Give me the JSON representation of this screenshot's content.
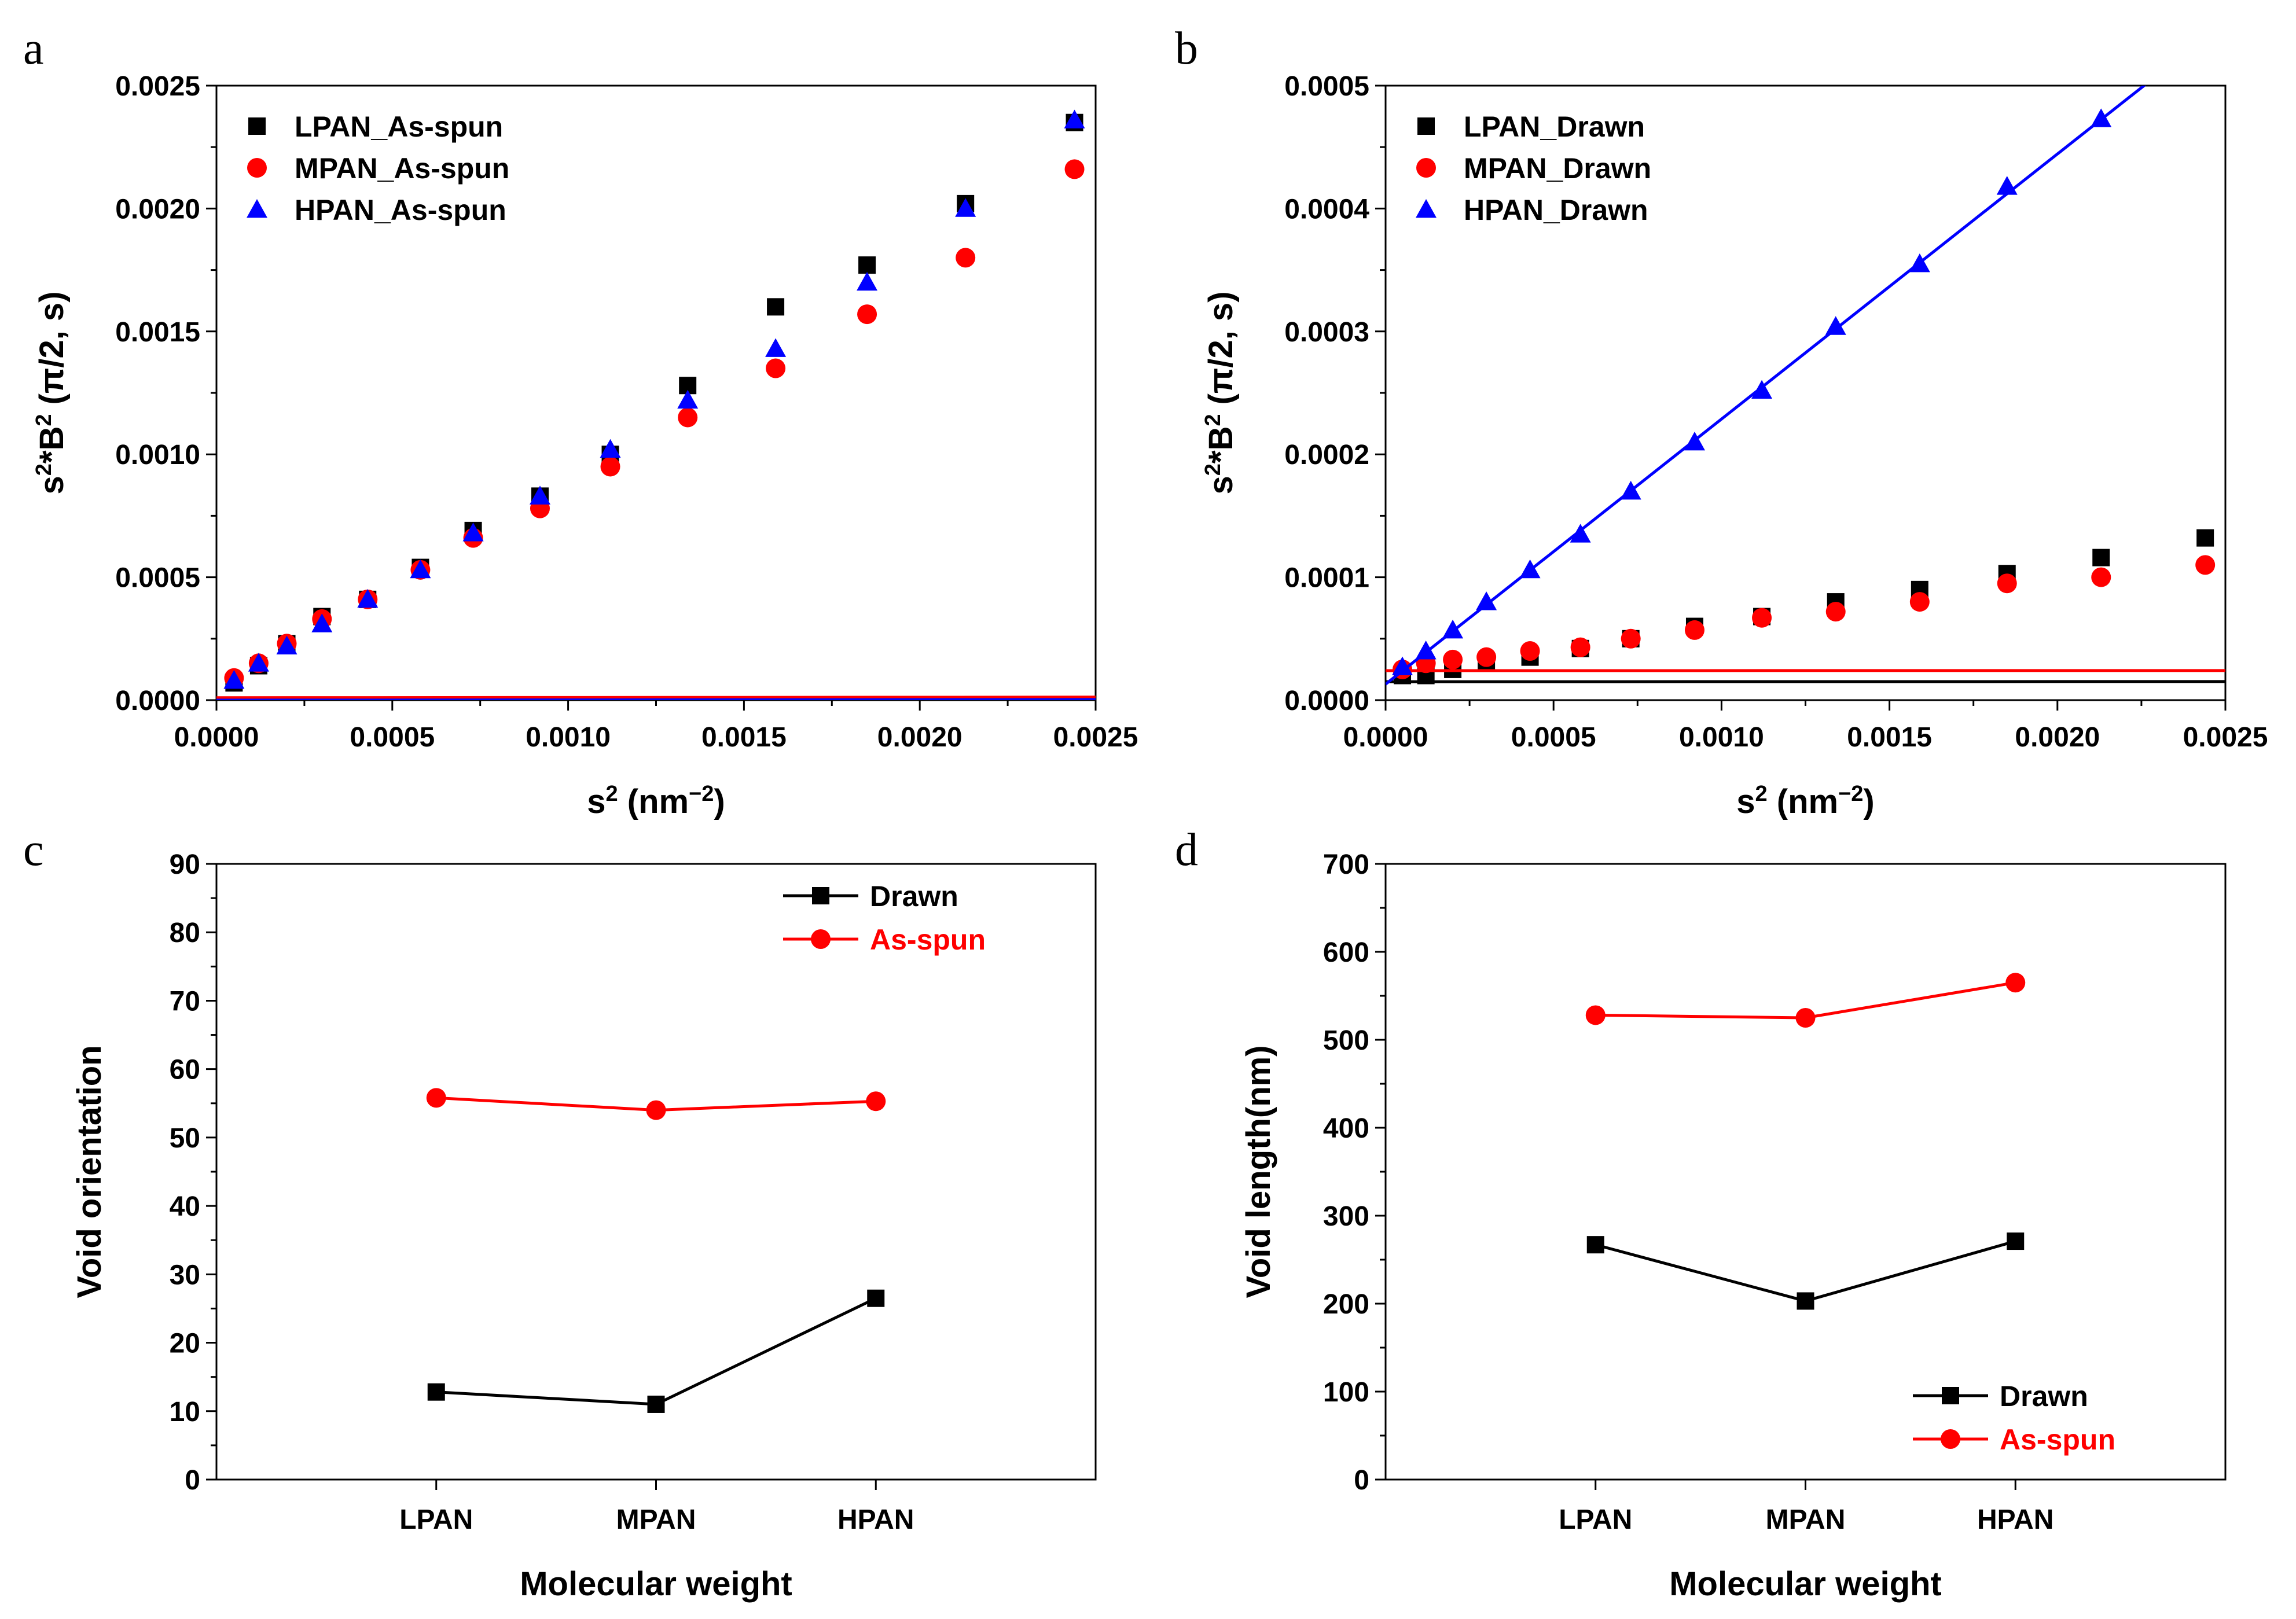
{
  "chart_data": [
    {
      "panel": "a",
      "type": "scatter",
      "xlabel": "s² (nm⁻²)",
      "ylabel": "s²*B² (π/2, s)",
      "xlim": [
        0,
        0.0025
      ],
      "ylim": [
        0,
        0.0025
      ],
      "xticks": [
        "0.0000",
        "0.0005",
        "0.0010",
        "0.0015",
        "0.0020",
        "0.0025"
      ],
      "yticks": [
        "0.0000",
        "0.0005",
        "0.0010",
        "0.0015",
        "0.0020",
        "0.0025"
      ],
      "legend_position": "top-left",
      "series": [
        {
          "name": "LPAN_As-spun",
          "marker": "square",
          "color": "#000000",
          "x": [
            5e-05,
            0.00012,
            0.0002,
            0.0003,
            0.00043,
            0.00058,
            0.00073,
            0.00092,
            0.00112,
            0.00134,
            0.00159,
            0.00185,
            0.00213,
            0.00244
          ],
          "y": [
            7e-05,
            0.00014,
            0.00023,
            0.00034,
            0.00041,
            0.00054,
            0.00069,
            0.00083,
            0.001,
            0.00128,
            0.0016,
            0.00177,
            0.00202,
            0.00235
          ],
          "fit": [
            0.0,
            0.00095
          ]
        },
        {
          "name": "MPAN_As-spun",
          "marker": "circle",
          "color": "#ff0000",
          "x": [
            5e-05,
            0.00012,
            0.0002,
            0.0003,
            0.00043,
            0.00058,
            0.00073,
            0.00092,
            0.00112,
            0.00134,
            0.00159,
            0.00185,
            0.00213,
            0.00244
          ],
          "y": [
            9e-05,
            0.00015,
            0.00023,
            0.00033,
            0.00041,
            0.00053,
            0.00066,
            0.00078,
            0.00095,
            0.00115,
            0.00135,
            0.00157,
            0.0018,
            0.00216
          ],
          "fit": [
            1e-05,
            0.000885
          ]
        },
        {
          "name": "HPAN_As-spun",
          "marker": "triangle",
          "color": "#0000ff",
          "x": [
            5e-05,
            0.00012,
            0.0002,
            0.0003,
            0.00043,
            0.00058,
            0.00073,
            0.00092,
            0.00112,
            0.00134,
            0.00159,
            0.00185,
            0.00213,
            0.00244
          ],
          "y": [
            8e-05,
            0.00015,
            0.00022,
            0.00031,
            0.00041,
            0.00053,
            0.00068,
            0.00083,
            0.00102,
            0.00122,
            0.00143,
            0.0017,
            0.002,
            0.00236
          ],
          "fit": [
            0.0,
            0.00093
          ]
        }
      ]
    },
    {
      "panel": "b",
      "type": "scatter",
      "xlabel": "s² (nm⁻²)",
      "ylabel": "s²*B² (π/2, s)",
      "xlim": [
        0,
        0.0025
      ],
      "ylim": [
        0,
        0.0005
      ],
      "xticks": [
        "0.0000",
        "0.0005",
        "0.0010",
        "0.0015",
        "0.0020",
        "0.0025"
      ],
      "yticks": [
        "0.0000",
        "0.0001",
        "0.0002",
        "0.0003",
        "0.0004",
        "0.0005"
      ],
      "legend_position": "top-left",
      "series": [
        {
          "name": "LPAN_Drawn",
          "marker": "square",
          "color": "#000000",
          "x": [
            5e-05,
            0.00012,
            0.0002,
            0.0003,
            0.00043,
            0.00058,
            0.00073,
            0.00092,
            0.00112,
            0.00134,
            0.00159,
            0.00185,
            0.00213,
            0.00244
          ],
          "y": [
            2e-05,
            2e-05,
            2.5e-05,
            3e-05,
            3.5e-05,
            4.2e-05,
            5e-05,
            6e-05,
            6.8e-05,
            8e-05,
            9e-05,
            0.000103,
            0.000116,
            0.000132
          ],
          "fit": [
            1.5e-05,
            4.85e-05
          ]
        },
        {
          "name": "MPAN_Drawn",
          "marker": "circle",
          "color": "#ff0000",
          "x": [
            5e-05,
            0.00012,
            0.0002,
            0.0003,
            0.00043,
            0.00058,
            0.00073,
            0.00092,
            0.00112,
            0.00134,
            0.00159,
            0.00185,
            0.00213,
            0.00244
          ],
          "y": [
            2.5e-05,
            3e-05,
            3.3e-05,
            3.5e-05,
            4e-05,
            4.3e-05,
            5e-05,
            5.7e-05,
            6.7e-05,
            7.2e-05,
            8e-05,
            9.5e-05,
            0.0001,
            0.00011
          ],
          "fit": [
            2.4e-05,
            3.65e-05
          ]
        },
        {
          "name": "HPAN_Drawn",
          "marker": "triangle",
          "color": "#0000ff",
          "x": [
            5e-05,
            0.00012,
            0.0002,
            0.0003,
            0.00043,
            0.00058,
            0.00073,
            0.00092,
            0.00112,
            0.00134,
            0.00159,
            0.00185,
            0.00213
          ],
          "y": [
            2.7e-05,
            4e-05,
            5.7e-05,
            8e-05,
            0.000106,
            0.000135,
            0.00017,
            0.00021,
            0.000252,
            0.000304,
            0.000355,
            0.000418,
            0.000473
          ],
          "fit": [
            1.3e-05,
            0.2157
          ]
        }
      ]
    },
    {
      "panel": "c",
      "type": "line",
      "xlabel": "Molecular weight",
      "ylabel": "Void orientation",
      "categories": [
        "LPAN",
        "MPAN",
        "HPAN"
      ],
      "ylim": [
        0,
        90
      ],
      "yticks": [
        "0",
        "10",
        "20",
        "30",
        "40",
        "50",
        "60",
        "70",
        "80",
        "90"
      ],
      "legend_position": "top-right",
      "series": [
        {
          "name": "Drawn",
          "marker": "square",
          "color": "#000000",
          "values": [
            12.8,
            11.0,
            26.5
          ]
        },
        {
          "name": "As-spun",
          "marker": "circle",
          "color": "#ff0000",
          "values": [
            55.8,
            54.0,
            55.3
          ]
        }
      ]
    },
    {
      "panel": "d",
      "type": "line",
      "xlabel": "Molecular weight",
      "ylabel": "Void length(nm)",
      "categories": [
        "LPAN",
        "MPAN",
        "HPAN"
      ],
      "ylim": [
        0,
        700
      ],
      "yticks": [
        "0",
        "100",
        "200",
        "300",
        "400",
        "500",
        "600",
        "700"
      ],
      "legend_position": "bottom-right",
      "series": [
        {
          "name": "Drawn",
          "marker": "square",
          "color": "#000000",
          "values": [
            267,
            203,
            271
          ]
        },
        {
          "name": "As-spun",
          "marker": "circle",
          "color": "#ff0000",
          "values": [
            528,
            525,
            565
          ]
        }
      ]
    }
  ]
}
